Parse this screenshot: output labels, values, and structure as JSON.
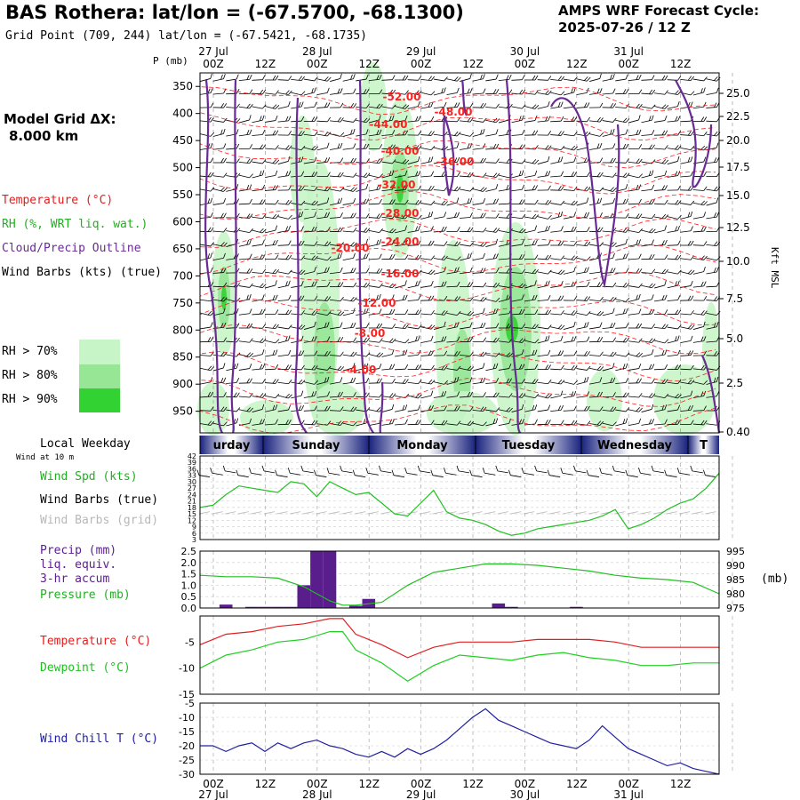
{
  "header": {
    "title": "BAS Rothera:  lat/lon = (-67.5700, -68.1300)",
    "subtitle": "Grid Point (709, 244) lat/lon = (-67.5421, -68.1735)",
    "cycle_line1": "AMPS WRF Forecast Cycle:",
    "cycle_line2": "2025-07-26 / 12  Z"
  },
  "side": {
    "model_grid_1": "Model Grid ΔX:",
    "model_grid_2": "8.000 km",
    "legend_temp": "Temperature (°C)",
    "legend_rh": "RH (%, WRT liq. wat.)",
    "legend_cloud": "Cloud/Precip Outline",
    "legend_wind": "Wind Barbs (kts) (true)",
    "rh70": "RH > 70%",
    "rh80": "RH > 80%",
    "rh90": "RH > 90%",
    "p_unit": "P (mb)",
    "kft": "Kft MSL",
    "local_weekday": "Local Weekday",
    "wind_at": "Wind at 10 m",
    "wspd": "Wind Spd (kts)",
    "wbarb_true": "Wind Barbs (true)",
    "wbarb_grid": "Wind Barbs (grid)",
    "precip1": "Precip (mm)",
    "precip2": "liq. equiv.",
    "precip3": "3-hr accum",
    "pressure": "Pressure (mb)",
    "mb": "(mb)",
    "temp": "Temperature (°C)",
    "dew": "Dewpoint (°C)",
    "chill": "Wind Chill T (°C)"
  },
  "time_axis": {
    "hour_labels": [
      "00Z",
      "12Z",
      "00Z",
      "12Z",
      "00Z",
      "12Z",
      "00Z",
      "12Z",
      "00Z",
      "12Z"
    ],
    "date_labels": [
      "27 Jul",
      "28 Jul",
      "29 Jul",
      "30 Jul",
      "31 Jul"
    ],
    "weekdays": [
      "urday",
      "Sunday",
      "Monday",
      "Tuesday",
      "Wednesday",
      "T"
    ]
  },
  "colors": {
    "temp": "#ff2020",
    "rh70": "#c8f5c8",
    "rh80": "#96e696",
    "rh90": "#32d232",
    "cloud": "#6a2a96",
    "precip": "#5a1e8c",
    "pressure": "#20c020",
    "dew": "#20d020",
    "chill": "#2020a0",
    "temp_line": "#e02020"
  },
  "chart_data": [
    {
      "type": "line",
      "panel": "cross-section",
      "y_pressure_ticks": [
        350,
        400,
        450,
        500,
        550,
        600,
        650,
        700,
        750,
        800,
        850,
        900,
        950
      ],
      "y_kft_ticks": [
        "25.0",
        "22.5",
        "20.0",
        "17.5",
        "15.0",
        "12.5",
        "10.0",
        "7.5",
        "5.0",
        "2.5",
        "0.40"
      ],
      "temp_contour_labels": [
        "-52.00",
        "-48.00",
        "-44.00",
        "-40.00",
        "-36.00",
        "-32.00",
        "-28.00",
        "-24.00",
        "-20.00",
        "-16.00",
        "-12.00",
        "-8.00",
        "-4.00"
      ]
    },
    {
      "type": "line",
      "panel": "wind",
      "series_name": "Wind Spd (kts)",
      "yticks": [
        3,
        6,
        9,
        12,
        15,
        18,
        21,
        24,
        27,
        30,
        33,
        36,
        39,
        42
      ],
      "ylim": [
        3,
        42
      ],
      "x": [
        0,
        3,
        6,
        9,
        12,
        15,
        18,
        21,
        24,
        27,
        30,
        33,
        36,
        39,
        42,
        45,
        48,
        51,
        54,
        57,
        60,
        63,
        66,
        69,
        72,
        75,
        78,
        81,
        84,
        87,
        90,
        93,
        96,
        99,
        102,
        105,
        108,
        111,
        114,
        117,
        120
      ],
      "values": [
        18,
        19,
        24,
        28,
        27,
        26,
        25,
        30,
        29,
        23,
        30,
        27,
        24,
        25,
        20,
        15,
        14,
        20,
        26,
        16,
        13,
        12,
        10,
        7,
        5,
        6,
        8,
        9,
        10,
        11,
        12,
        14,
        17,
        8,
        10,
        13,
        17,
        20,
        22,
        27,
        34
      ]
    },
    {
      "type": "bar",
      "panel": "precip",
      "series_name": "Precip (mm)",
      "yticks": [
        "0.0",
        "0.5",
        "1.0",
        "1.5",
        "2.0",
        "2.5"
      ],
      "ylim": [
        0,
        2.5
      ],
      "x": [
        6,
        12,
        15,
        18,
        21,
        24,
        27,
        30,
        36,
        39,
        42,
        51,
        54,
        60,
        69,
        72,
        87,
        90,
        96,
        111
      ],
      "values": [
        0.15,
        0.05,
        0.05,
        0.05,
        0.05,
        1.0,
        2.5,
        2.5,
        0.1,
        0.4,
        0.02,
        0.02,
        0.02,
        0.02,
        0.2,
        0.05,
        0.05,
        0.02,
        0.02,
        0.02
      ]
    },
    {
      "type": "line",
      "panel": "pressure",
      "series_name": "Pressure (mb)",
      "yticks": [
        975,
        980,
        985,
        990,
        995
      ],
      "ylim": [
        975,
        995
      ],
      "x": [
        0,
        6,
        12,
        18,
        24,
        30,
        33,
        36,
        42,
        48,
        54,
        60,
        66,
        72,
        78,
        84,
        90,
        96,
        102,
        108,
        114,
        120
      ],
      "values": [
        986.5,
        986.0,
        986.0,
        985.5,
        982.5,
        977.5,
        976.0,
        976.0,
        977.0,
        983.0,
        987.5,
        989.0,
        990.5,
        990.5,
        990.0,
        989.0,
        988.0,
        986.5,
        985.5,
        985.0,
        984.0,
        980.0
      ]
    },
    {
      "type": "line",
      "panel": "temperature",
      "series": [
        {
          "name": "Temperature (°C)",
          "x": [
            0,
            6,
            12,
            18,
            24,
            30,
            33,
            36,
            42,
            48,
            54,
            60,
            66,
            72,
            78,
            84,
            90,
            96,
            102,
            108,
            114,
            120
          ],
          "values": [
            -5.5,
            -3.5,
            -3.0,
            -2.0,
            -1.5,
            -0.5,
            -0.5,
            -3.5,
            -5.5,
            -8.0,
            -6.0,
            -5.0,
            -5.0,
            -5.0,
            -4.5,
            -4.5,
            -4.5,
            -5.0,
            -6.0,
            -6.0,
            -6.0,
            -6.0
          ]
        },
        {
          "name": "Dewpoint (°C)",
          "x": [
            0,
            6,
            12,
            18,
            24,
            30,
            33,
            36,
            42,
            48,
            54,
            60,
            66,
            72,
            78,
            84,
            90,
            96,
            102,
            108,
            114,
            120
          ],
          "values": [
            -10.0,
            -7.5,
            -6.5,
            -5.0,
            -4.5,
            -3.0,
            -3.0,
            -6.5,
            -9.0,
            -12.5,
            -9.5,
            -7.5,
            -8.0,
            -8.5,
            -7.5,
            -7.0,
            -8.0,
            -8.5,
            -9.5,
            -9.5,
            -9.0,
            -9.0
          ]
        }
      ],
      "yticks": [
        -5,
        -10,
        -15
      ],
      "ylim": [
        -15,
        0
      ]
    },
    {
      "type": "line",
      "panel": "windchill",
      "series_name": "Wind Chill T (°C)",
      "yticks": [
        -5,
        -10,
        -15,
        -20,
        -25,
        -30
      ],
      "ylim": [
        -30,
        -5
      ],
      "x": [
        0,
        3,
        6,
        9,
        12,
        15,
        18,
        21,
        24,
        27,
        30,
        33,
        36,
        39,
        42,
        45,
        48,
        51,
        54,
        57,
        60,
        63,
        66,
        69,
        72,
        75,
        78,
        81,
        84,
        87,
        90,
        93,
        96,
        99,
        102,
        105,
        108,
        111,
        114,
        117,
        120
      ],
      "values": [
        -20,
        -20,
        -22,
        -20,
        -19,
        -22,
        -19,
        -21,
        -19,
        -18,
        -20,
        -21,
        -23,
        -24,
        -22,
        -24,
        -21,
        -23,
        -21,
        -18,
        -14,
        -10,
        -7,
        -11,
        -13,
        -15,
        -17,
        -19,
        -20,
        -21,
        -18,
        -13,
        -17,
        -21,
        -23,
        -25,
        -27,
        -26,
        -28,
        -29,
        -30
      ]
    }
  ]
}
